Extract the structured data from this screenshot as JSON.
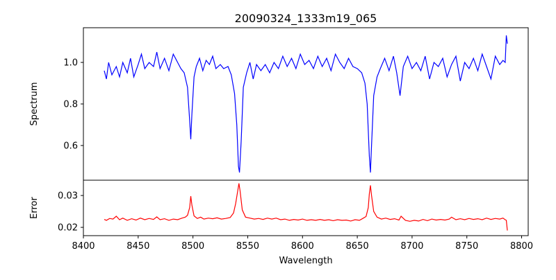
{
  "chart_data": [
    {
      "type": "line",
      "title": "20090324_1333m19_065",
      "xlabel": "",
      "ylabel": "Spectrum",
      "xlim": [
        8400,
        8806
      ],
      "ylim": [
        0.433,
        1.167
      ],
      "yticks": [
        0.6,
        0.8,
        1.0
      ],
      "ytick_labels": [
        "0.6",
        "0.8",
        "1.0"
      ],
      "color": "#0000ff",
      "grid": false,
      "x": [
        8419,
        8421,
        8423,
        8426,
        8430,
        8433,
        8436,
        8440,
        8443,
        8446,
        8450,
        8453,
        8456,
        8460,
        8464,
        8467,
        8470,
        8474,
        8478,
        8482,
        8486,
        8489,
        8492,
        8495,
        8497,
        8498,
        8499,
        8501,
        8503,
        8506,
        8509,
        8512,
        8515,
        8518,
        8521,
        8525,
        8528,
        8532,
        8535,
        8538,
        8540,
        8541.5,
        8542.5,
        8544,
        8546,
        8549,
        8552,
        8555,
        8558,
        8562,
        8566,
        8570,
        8574,
        8578,
        8582,
        8586,
        8590,
        8594,
        8598,
        8602,
        8606,
        8610,
        8614,
        8618,
        8622,
        8626,
        8630,
        8634,
        8638,
        8642,
        8646,
        8650,
        8654,
        8657,
        8659,
        8661,
        8662,
        8663,
        8665,
        8668,
        8671,
        8675,
        8679,
        8683,
        8686,
        8689,
        8692,
        8696,
        8700,
        8704,
        8708,
        8712,
        8716,
        8720,
        8724,
        8728,
        8732,
        8736,
        8740,
        8744,
        8748,
        8752,
        8756,
        8760,
        8764,
        8768,
        8772,
        8776,
        8780,
        8783,
        8785,
        8786,
        8787
      ],
      "y": [
        0.96,
        0.92,
        1.0,
        0.94,
        0.98,
        0.93,
        1.0,
        0.95,
        1.02,
        0.93,
        0.99,
        1.04,
        0.97,
        1.0,
        0.98,
        1.05,
        0.97,
        1.02,
        0.96,
        1.04,
        1.0,
        0.97,
        0.95,
        0.88,
        0.72,
        0.63,
        0.75,
        0.93,
        0.98,
        1.02,
        0.96,
        1.01,
        0.99,
        1.03,
        0.97,
        0.99,
        0.97,
        0.98,
        0.94,
        0.85,
        0.7,
        0.5,
        0.47,
        0.62,
        0.88,
        0.95,
        1.0,
        0.92,
        0.99,
        0.96,
        0.99,
        0.95,
        1.0,
        0.97,
        1.03,
        0.98,
        1.02,
        0.97,
        1.04,
        0.99,
        1.01,
        0.97,
        1.03,
        0.98,
        1.02,
        0.96,
        1.04,
        1.0,
        0.97,
        1.02,
        0.98,
        0.97,
        0.95,
        0.9,
        0.8,
        0.55,
        0.47,
        0.6,
        0.84,
        0.93,
        0.97,
        1.02,
        0.96,
        1.03,
        0.95,
        0.84,
        0.98,
        1.03,
        0.97,
        1.0,
        0.96,
        1.03,
        0.92,
        1.0,
        0.98,
        1.02,
        0.93,
        0.99,
        1.03,
        0.91,
        1.0,
        0.97,
        1.02,
        0.96,
        1.04,
        0.98,
        0.92,
        1.03,
        0.99,
        1.01,
        1.0,
        1.13,
        1.09
      ]
    },
    {
      "type": "line",
      "xlabel": "Wavelength",
      "ylabel": "Error",
      "xlim": [
        8400,
        8806
      ],
      "ylim": [
        0.0174,
        0.0348
      ],
      "xticks": [
        8400,
        8450,
        8500,
        8550,
        8600,
        8650,
        8700,
        8750,
        8800
      ],
      "xtick_labels": [
        "8400",
        "8450",
        "8500",
        "8550",
        "8600",
        "8650",
        "8700",
        "8750",
        "8800"
      ],
      "yticks": [
        0.02,
        0.03
      ],
      "ytick_labels": [
        "0.02",
        "0.03"
      ],
      "color": "#ff0000",
      "grid": false,
      "x": [
        8419,
        8421,
        8424,
        8427,
        8430,
        8433,
        8436,
        8440,
        8444,
        8448,
        8452,
        8456,
        8460,
        8464,
        8467,
        8470,
        8474,
        8478,
        8482,
        8486,
        8490,
        8493,
        8495,
        8497,
        8498,
        8499,
        8501,
        8504,
        8507,
        8510,
        8514,
        8518,
        8522,
        8526,
        8530,
        8534,
        8537,
        8539,
        8541,
        8542,
        8543,
        8545,
        8548,
        8552,
        8556,
        8560,
        8564,
        8568,
        8572,
        8576,
        8580,
        8584,
        8588,
        8592,
        8596,
        8600,
        8604,
        8608,
        8612,
        8616,
        8620,
        8624,
        8628,
        8632,
        8636,
        8640,
        8644,
        8648,
        8652,
        8655,
        8658,
        8660,
        8661,
        8662,
        8663,
        8665,
        8668,
        8672,
        8676,
        8680,
        8684,
        8688,
        8690,
        8694,
        8698,
        8702,
        8706,
        8710,
        8714,
        8718,
        8722,
        8726,
        8730,
        8734,
        8736,
        8740,
        8744,
        8748,
        8752,
        8756,
        8760,
        8764,
        8768,
        8772,
        8776,
        8780,
        8783,
        8785,
        8786,
        8787
      ],
      "y": [
        0.0225,
        0.0222,
        0.0228,
        0.0226,
        0.0235,
        0.0224,
        0.0229,
        0.0222,
        0.0227,
        0.0223,
        0.0229,
        0.0224,
        0.0228,
        0.0225,
        0.0233,
        0.0224,
        0.0227,
        0.0222,
        0.0226,
        0.0224,
        0.0229,
        0.0232,
        0.0238,
        0.0262,
        0.0298,
        0.027,
        0.0236,
        0.0228,
        0.0232,
        0.0226,
        0.0229,
        0.0227,
        0.023,
        0.0226,
        0.0228,
        0.0231,
        0.0245,
        0.0275,
        0.0318,
        0.0338,
        0.0315,
        0.0255,
        0.0232,
        0.0229,
        0.0226,
        0.0228,
        0.0225,
        0.0229,
        0.0226,
        0.0229,
        0.0224,
        0.0226,
        0.0222,
        0.0225,
        0.0223,
        0.0226,
        0.0222,
        0.0224,
        0.0222,
        0.0225,
        0.0222,
        0.0224,
        0.0221,
        0.0224,
        0.0222,
        0.0223,
        0.022,
        0.0224,
        0.0222,
        0.0228,
        0.0234,
        0.0262,
        0.0305,
        0.0332,
        0.03,
        0.025,
        0.0232,
        0.0226,
        0.0229,
        0.0225,
        0.0227,
        0.0223,
        0.0235,
        0.0222,
        0.0219,
        0.0222,
        0.022,
        0.0225,
        0.0221,
        0.0226,
        0.0223,
        0.0225,
        0.0223,
        0.0226,
        0.0232,
        0.0224,
        0.0227,
        0.0224,
        0.0228,
        0.0225,
        0.0227,
        0.0224,
        0.0229,
        0.0225,
        0.0228,
        0.0226,
        0.0229,
        0.0224,
        0.0222,
        0.019
      ]
    }
  ]
}
